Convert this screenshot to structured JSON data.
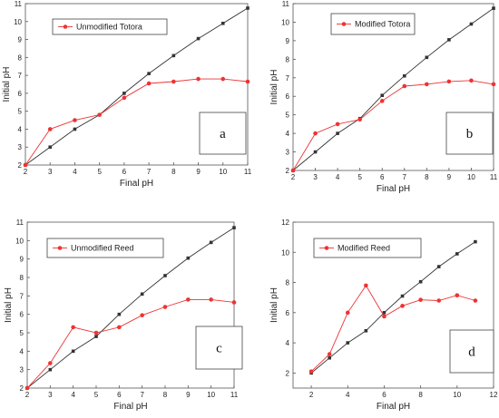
{
  "chart_data": [
    {
      "type": "line",
      "panel_label": "a",
      "xlabel": "Final pH",
      "ylabel": "Initial pH",
      "xlim": [
        2,
        11
      ],
      "ylim": [
        2,
        11
      ],
      "xticks": [
        2,
        3,
        4,
        5,
        6,
        7,
        8,
        9,
        10,
        11
      ],
      "yticks": [
        2,
        3,
        4,
        5,
        6,
        7,
        8,
        9,
        10,
        11
      ],
      "legend_position": "top-left",
      "series": [
        {
          "name": "",
          "color": "#333333",
          "marker": "square",
          "x": [
            2,
            3,
            4,
            5,
            6,
            7,
            8,
            9,
            10,
            11
          ],
          "y": [
            2,
            3,
            4,
            4.8,
            6,
            7.1,
            8.1,
            9.05,
            9.9,
            10.75
          ]
        },
        {
          "name": "Unmodified Totora",
          "color": "#ee3333",
          "marker": "circle",
          "x": [
            2,
            3,
            4,
            5,
            6,
            7,
            8,
            9,
            10,
            11
          ],
          "y": [
            2,
            4,
            4.5,
            4.8,
            5.75,
            6.55,
            6.65,
            6.8,
            6.8,
            6.65
          ]
        }
      ]
    },
    {
      "type": "line",
      "panel_label": "b",
      "xlabel": "Final pH",
      "ylabel": "Initial pH",
      "xlim": [
        2,
        11
      ],
      "ylim": [
        2,
        11
      ],
      "xticks": [
        2,
        3,
        4,
        5,
        6,
        7,
        8,
        9,
        10,
        11
      ],
      "yticks": [
        2,
        3,
        4,
        5,
        6,
        7,
        8,
        9,
        10,
        11
      ],
      "legend_position": "top-left",
      "series": [
        {
          "name": "",
          "color": "#333333",
          "marker": "square",
          "x": [
            2,
            3,
            4,
            5,
            6,
            7,
            8,
            9,
            10,
            11
          ],
          "y": [
            2,
            3,
            4,
            4.8,
            6.05,
            7.1,
            8.1,
            9.05,
            9.9,
            10.75
          ]
        },
        {
          "name": "Modified Totora",
          "color": "#ee3333",
          "marker": "circle",
          "x": [
            2,
            3,
            4,
            5,
            6,
            7,
            8,
            9,
            10,
            11
          ],
          "y": [
            2,
            4,
            4.5,
            4.75,
            5.75,
            6.55,
            6.65,
            6.8,
            6.85,
            6.65
          ]
        }
      ]
    },
    {
      "type": "line",
      "panel_label": "c",
      "xlabel": "Final pH",
      "ylabel": "Initial pH",
      "xlim": [
        2,
        11
      ],
      "ylim": [
        2,
        11
      ],
      "xticks": [
        2,
        3,
        4,
        5,
        6,
        7,
        8,
        9,
        10,
        11
      ],
      "yticks": [
        2,
        3,
        4,
        5,
        6,
        7,
        8,
        9,
        10,
        11
      ],
      "legend_position": "top-left",
      "series": [
        {
          "name": "",
          "color": "#333333",
          "marker": "square",
          "x": [
            2,
            3,
            4,
            5,
            6,
            7,
            8,
            9,
            10,
            11
          ],
          "y": [
            2,
            3,
            4,
            4.8,
            6,
            7.1,
            8.1,
            9.05,
            9.9,
            10.7
          ]
        },
        {
          "name": "Unmodified Reed",
          "color": "#ee3333",
          "marker": "circle",
          "x": [
            2,
            3,
            4,
            5,
            6,
            7,
            8,
            9,
            10,
            11
          ],
          "y": [
            2,
            3.35,
            5.3,
            5.0,
            5.3,
            5.95,
            6.4,
            6.8,
            6.8,
            6.65
          ]
        }
      ]
    },
    {
      "type": "line",
      "panel_label": "d",
      "xlabel": "Final pH",
      "ylabel": "Initial pH",
      "xlim": [
        1,
        12
      ],
      "ylim": [
        1,
        12
      ],
      "xticks": [
        2,
        4,
        6,
        8,
        10,
        12
      ],
      "yticks": [
        2,
        4,
        6,
        8,
        10,
        12
      ],
      "legend_position": "top-left",
      "series": [
        {
          "name": "",
          "color": "#333333",
          "marker": "square",
          "x": [
            2,
            3,
            4,
            5,
            6,
            7,
            8,
            9,
            10,
            11
          ],
          "y": [
            2,
            3,
            4,
            4.8,
            6,
            7.1,
            8.05,
            9.05,
            9.9,
            10.7
          ]
        },
        {
          "name": "Modified Reed",
          "color": "#ee3333",
          "marker": "circle",
          "x": [
            2,
            3,
            4,
            5,
            6,
            7,
            8,
            9,
            10,
            11
          ],
          "y": [
            2.1,
            3.25,
            6,
            7.8,
            5.75,
            6.45,
            6.85,
            6.8,
            7.15,
            6.8
          ]
        }
      ]
    }
  ]
}
